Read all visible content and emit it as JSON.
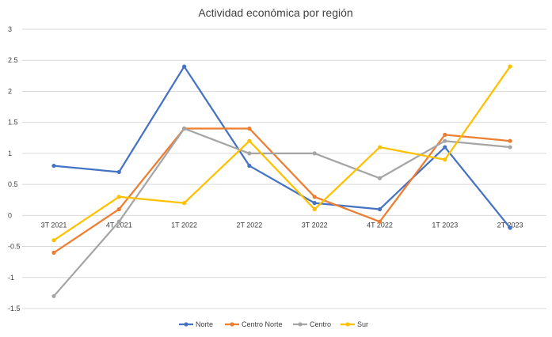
{
  "chart_data": {
    "type": "line",
    "title": "Actividad económica por región",
    "xlabel": "",
    "ylabel": "",
    "categories": [
      "3T 2021",
      "4T 2021",
      "1T 2022",
      "2T 2022",
      "3T 2022",
      "4T 2022",
      "1T 2023",
      "2T 2023"
    ],
    "ylim": [
      -1.5,
      3
    ],
    "yticks": [
      3,
      2.5,
      2,
      1.5,
      1,
      0.5,
      0,
      -0.5,
      -1,
      -1.5
    ],
    "ytick_labels": [
      "3",
      "2.5",
      "2",
      "1.5",
      "1",
      "0.5",
      "0",
      "-0.5",
      "-1",
      "-1.5"
    ],
    "grid": true,
    "legend_position": "bottom",
    "series": [
      {
        "name": "Norte",
        "color": "#4472C4",
        "values": [
          0.8,
          0.7,
          2.4,
          0.8,
          0.2,
          0.1,
          1.1,
          -0.2
        ]
      },
      {
        "name": "Centro Norte",
        "color": "#ED7D31",
        "values": [
          -0.6,
          0.1,
          1.4,
          1.4,
          0.3,
          -0.1,
          1.3,
          1.2
        ]
      },
      {
        "name": "Centro",
        "color": "#A5A5A5",
        "values": [
          -1.3,
          -0.1,
          1.4,
          1.0,
          1.0,
          0.6,
          1.2,
          1.1
        ]
      },
      {
        "name": "Sur",
        "color": "#FFC000",
        "values": [
          -0.4,
          0.3,
          0.2,
          1.2,
          0.1,
          1.1,
          0.9,
          2.4
        ]
      }
    ]
  }
}
